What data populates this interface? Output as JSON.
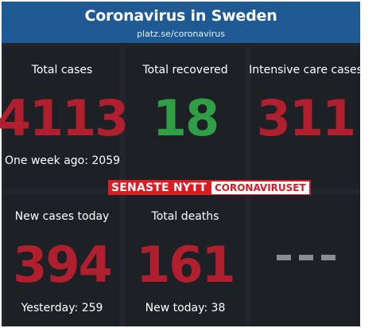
{
  "header": {
    "title": "Coronavirus in Sweden",
    "url": "platz.se/coronavirus"
  },
  "tiles": {
    "total_cases": {
      "label": "Total cases",
      "value": "4113",
      "sub": "One week ago: 2059"
    },
    "total_recovered": {
      "label": "Total recovered",
      "value": "18"
    },
    "icu_cases": {
      "label": "Intensive care cases",
      "value": "311"
    },
    "new_cases_today": {
      "label": "New cases today",
      "value": "394",
      "sub": "Yesterday: 259"
    },
    "total_deaths": {
      "label": "Total deaths",
      "value": "161",
      "sub": "New today: 38"
    },
    "empty_tile": {
      "value": "- - -"
    }
  },
  "banner": {
    "left": "SENASTE NYTT",
    "right": "CORONAVIRUSET"
  },
  "colors": {
    "header_bg": "#1f5a95",
    "value_red": "#b01f2e",
    "value_green": "#2f9e45",
    "banner_red": "#d81c24",
    "tile_bg": "#1d2126"
  }
}
